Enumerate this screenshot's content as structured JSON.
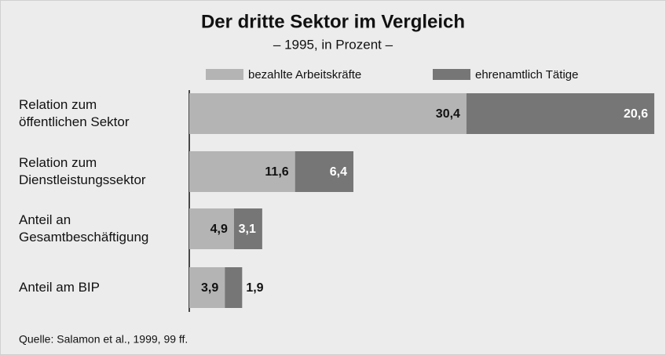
{
  "chart_data": {
    "type": "stacked_barh",
    "title": "Der dritte Sektor im Vergleich",
    "subtitle": "– 1995, in Prozent –",
    "categories": [
      "Relation zum\nöffentlichen Sektor",
      "Relation zum\nDienstleistungssektor",
      "Anteil an\nGesamtbeschäftigung",
      "Anteil am BIP"
    ],
    "series": [
      {
        "name": "bezahlte Arbeitskräfte",
        "color": "#b4b4b4",
        "values": [
          30.4,
          11.6,
          4.9,
          3.9
        ],
        "value_labels": [
          "30,4",
          "11,6",
          "4,9",
          "3,9"
        ]
      },
      {
        "name": "ehrenamtlich Tätige",
        "color": "#767676",
        "values": [
          20.6,
          6.4,
          3.1,
          1.9
        ],
        "value_labels": [
          "20,6",
          "6,4",
          "3,1",
          "1,9"
        ]
      }
    ],
    "source": "Quelle: Salamon et al., 1999, 99 ff."
  }
}
